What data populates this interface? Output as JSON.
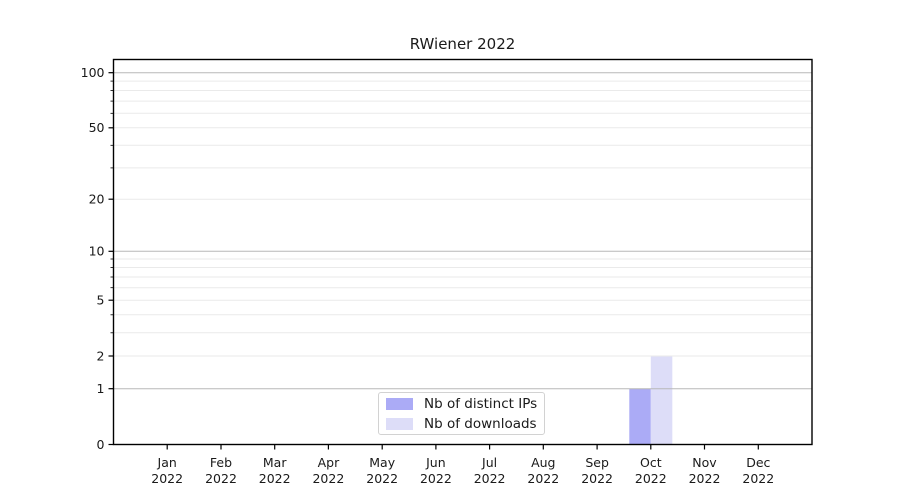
{
  "chart_data": {
    "type": "bar",
    "title": "RWiener 2022",
    "categories": [
      "Jan",
      "Feb",
      "Mar",
      "Apr",
      "May",
      "Jun",
      "Jul",
      "Aug",
      "Sep",
      "Oct",
      "Nov",
      "Dec"
    ],
    "year_label": "2022",
    "series": [
      {
        "name": "Nb of distinct IPs",
        "color": "#ababf6",
        "values": [
          0,
          0,
          0,
          0,
          0,
          0,
          0,
          0,
          0,
          1,
          0,
          0
        ]
      },
      {
        "name": "Nb of downloads",
        "color": "#ddddf8",
        "values": [
          0,
          0,
          0,
          0,
          0,
          0,
          0,
          0,
          0,
          2,
          0,
          0
        ]
      }
    ],
    "xlabel": "",
    "ylabel": "",
    "y_axis": {
      "scale": "log1p",
      "ticks": [
        0,
        1,
        2,
        5,
        10,
        20,
        50,
        100
      ],
      "light_gridlines": [
        2,
        3,
        4,
        5,
        6,
        7,
        8,
        9,
        20,
        30,
        40,
        50,
        60,
        70,
        80,
        90
      ],
      "strong_gridlines": [
        1,
        10,
        100
      ],
      "max": 118
    },
    "legend": {
      "position": "lower center",
      "entries": [
        "Nb of distinct IPs",
        "Nb of downloads"
      ]
    },
    "grid": true,
    "colors": {
      "axis": "#000000",
      "strong_grid": "#b8b8b8",
      "light_grid": "#eaeaea",
      "text": "#1a1a1a"
    }
  }
}
